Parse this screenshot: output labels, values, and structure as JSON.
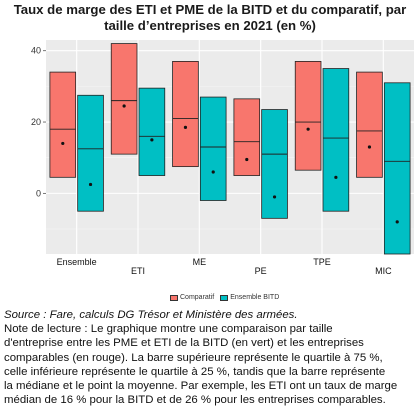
{
  "title_lines": [
    "Taux de marge des ETI et PME de la BITD et du comparatif, par",
    "taille d’entreprises en 2021 (en %)"
  ],
  "legend": {
    "comparatif": "Comparatif",
    "bitd": "Ensemble BITD"
  },
  "source": "Source : Fare, calculs DG Trésor et Ministère des armées.",
  "note_lines": [
    "Note de lecture : Le graphique montre une comparaison par taille",
    "d'entreprise entre les PME et ETI de la BITD (en vert) et les entreprises",
    "comparables (en rouge). La barre supérieure représente le quartile à 75 %,",
    "celle inférieure représente le quartile à 25 %, tandis que la barre représente",
    "la médiane et le point la moyenne. Par exemple, les ETI ont un taux de marge",
    "médian de 16 % pour la BITD et de 26 % pour les entreprises comparables."
  ],
  "chart_data": {
    "type": "box",
    "categories": [
      "Ensemble",
      "ETI",
      "ME",
      "PE",
      "TPE",
      "MIC"
    ],
    "ylim": [
      -17,
      43
    ],
    "yticks": [
      0,
      20,
      40
    ],
    "grid": true,
    "legend_position": "bottom",
    "series": [
      {
        "name": "Comparatif",
        "color": "#F8766D",
        "q1": [
          4.5,
          11,
          7.5,
          5,
          6.5,
          4.5
        ],
        "median": [
          18,
          26,
          21,
          14.5,
          20,
          17.5
        ],
        "q3": [
          34,
          42,
          37,
          26.5,
          37,
          34
        ],
        "mean": [
          14,
          24.5,
          18.5,
          9.5,
          18,
          13
        ]
      },
      {
        "name": "Ensemble BITD",
        "color": "#00BFC4",
        "q1": [
          -5,
          5,
          -2,
          -7,
          -5,
          -17
        ],
        "median": [
          12.5,
          16,
          13,
          11,
          15.5,
          9
        ],
        "q3": [
          27.5,
          29.5,
          27,
          23.5,
          35,
          31
        ],
        "mean": [
          2.5,
          15,
          6,
          -1,
          4.5,
          -8
        ]
      }
    ]
  }
}
